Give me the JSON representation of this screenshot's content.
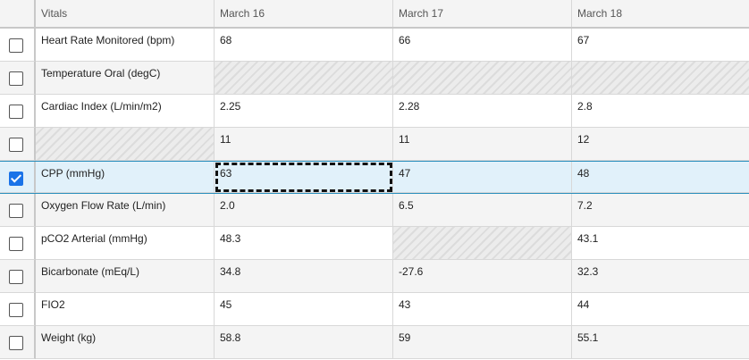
{
  "header": {
    "vitals_label": "Vitals",
    "dates": [
      "March 16",
      "March 17",
      "March 18"
    ]
  },
  "rows": [
    {
      "checked": false,
      "vital": "Heart Rate Monitored (bpm)",
      "values": [
        "68",
        "66",
        "67"
      ]
    },
    {
      "checked": false,
      "vital": "Temperature Oral (degC)",
      "values": [
        "",
        "",
        ""
      ]
    },
    {
      "checked": false,
      "vital": "Cardiac Index (L/min/m2)",
      "values": [
        "2.25",
        "2.28",
        "2.8"
      ]
    },
    {
      "checked": false,
      "vital": "",
      "values": [
        "11",
        "11",
        "12"
      ]
    },
    {
      "checked": true,
      "vital": "CPP (mmHg)",
      "values": [
        "63",
        "47",
        "48"
      ]
    },
    {
      "checked": false,
      "vital": "Oxygen Flow Rate (L/min)",
      "values": [
        "2.0",
        "6.5",
        "7.2"
      ]
    },
    {
      "checked": false,
      "vital": "pCO2 Arterial (mmHg)",
      "values": [
        "48.3",
        "",
        "43.1"
      ]
    },
    {
      "checked": false,
      "vital": "Bicarbonate (mEq/L)",
      "values": [
        "34.8",
        "-27.6",
        "32.3"
      ]
    },
    {
      "checked": false,
      "vital": "FIO2",
      "values": [
        "45",
        "43",
        "44"
      ]
    },
    {
      "checked": false,
      "vital": "Weight (kg)",
      "values": [
        "58.8",
        "59",
        "55.1"
      ]
    }
  ]
}
